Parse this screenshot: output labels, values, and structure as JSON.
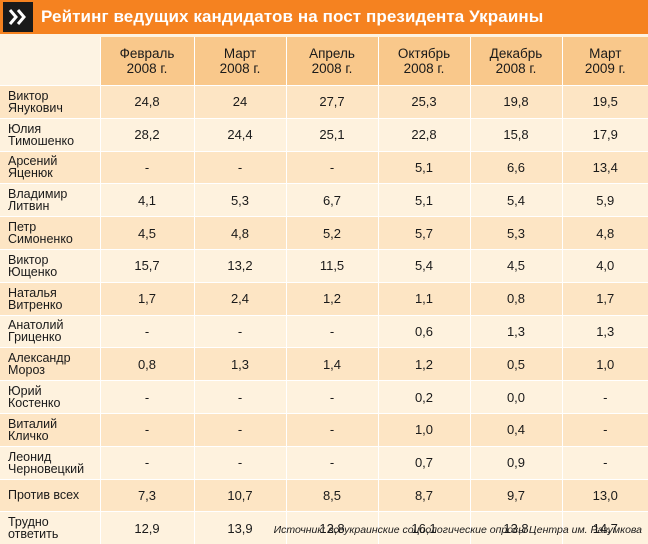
{
  "title": "Рейтинг ведущих кандидатов на пост президента Украины",
  "source": "Источник: всеукраинские социологические опросы Центра им. Разумкова",
  "chart_data": {
    "type": "table",
    "columns": [
      [
        "Февраль",
        "2008 г."
      ],
      [
        "Март",
        "2008 г."
      ],
      [
        "Апрель",
        "2008 г."
      ],
      [
        "Октябрь",
        "2008 г."
      ],
      [
        "Декабрь",
        "2008 г."
      ],
      [
        "Март",
        "2009 г."
      ]
    ],
    "rows": [
      {
        "name": [
          "Виктор",
          "Янукович"
        ],
        "values": [
          "24,8",
          "24",
          "27,7",
          "25,3",
          "19,8",
          "19,5"
        ]
      },
      {
        "name": [
          "Юлия",
          "Тимошенко"
        ],
        "values": [
          "28,2",
          "24,4",
          "25,1",
          "22,8",
          "15,8",
          "17,9"
        ]
      },
      {
        "name": [
          "Арсений",
          "Яценюк"
        ],
        "values": [
          "-",
          "-",
          "-",
          "5,1",
          "6,6",
          "13,4"
        ]
      },
      {
        "name": [
          "Владимир",
          "Литвин"
        ],
        "values": [
          "4,1",
          "5,3",
          "6,7",
          "5,1",
          "5,4",
          "5,9"
        ]
      },
      {
        "name": [
          "Петр",
          "Симоненко"
        ],
        "values": [
          "4,5",
          "4,8",
          "5,2",
          "5,7",
          "5,3",
          "4,8"
        ]
      },
      {
        "name": [
          "Виктор",
          "Ющенко"
        ],
        "values": [
          "15,7",
          "13,2",
          "11,5",
          "5,4",
          "4,5",
          "4,0"
        ]
      },
      {
        "name": [
          "Наталья",
          "Витренко"
        ],
        "values": [
          "1,7",
          "2,4",
          "1,2",
          "1,1",
          "0,8",
          "1,7"
        ]
      },
      {
        "name": [
          "Анатолий",
          "Гриценко"
        ],
        "values": [
          "-",
          "-",
          "-",
          "0,6",
          "1,3",
          "1,3"
        ]
      },
      {
        "name": [
          "Александр",
          "Мороз"
        ],
        "values": [
          "0,8",
          "1,3",
          "1,4",
          "1,2",
          "0,5",
          "1,0"
        ]
      },
      {
        "name": [
          "Юрий",
          "Костенко"
        ],
        "values": [
          "-",
          "-",
          "-",
          "0,2",
          "0,0",
          "-"
        ]
      },
      {
        "name": [
          "Виталий",
          "Кличко"
        ],
        "values": [
          "-",
          "-",
          "-",
          "1,0",
          "0,4",
          "-"
        ]
      },
      {
        "name": [
          "Леонид",
          "Черновецкий"
        ],
        "values": [
          "-",
          "-",
          "-",
          "0,7",
          "0,9",
          "-"
        ]
      },
      {
        "name": [
          "Против всех"
        ],
        "values": [
          "7,3",
          "10,7",
          "8,5",
          "8,7",
          "9,7",
          "13,0"
        ]
      },
      {
        "name": [
          "Трудно",
          "ответить"
        ],
        "values": [
          "12,9",
          "13,9",
          "12,8",
          "16,1",
          "13,8",
          "14,7"
        ]
      }
    ]
  },
  "colors": {
    "accent": "#f58220",
    "header_fill": "#f9c88b",
    "row_dark": "#fde5c4",
    "row_light": "#fef2de",
    "background": "#fdf3e3"
  },
  "icons": {
    "title_marker": "double-chevron-right-icon"
  }
}
